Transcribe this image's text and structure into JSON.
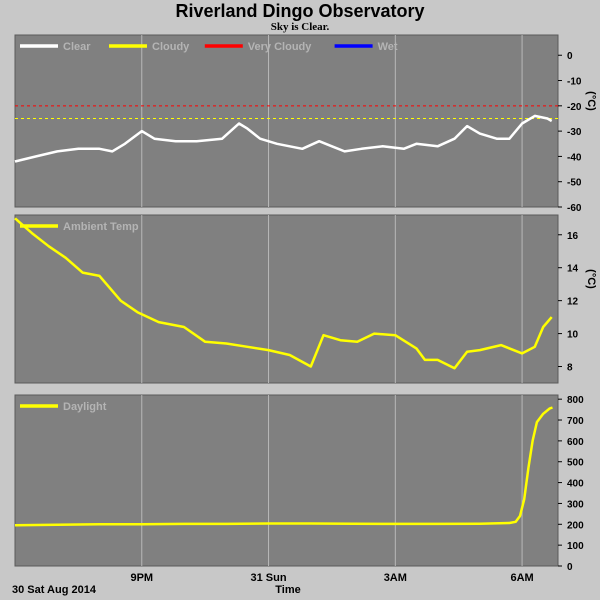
{
  "title": "Riverland Dingo Observatory",
  "subtitle": "Sky is Clear.",
  "xaxis": {
    "label": "Time",
    "date_label": "30 Sat Aug 2014",
    "ticks": [
      {
        "t": 3.0,
        "label": "9PM"
      },
      {
        "t": 6.0,
        "label": "31 Sun"
      },
      {
        "t": 9.0,
        "label": "3AM"
      },
      {
        "t": 12.0,
        "label": "6AM"
      }
    ],
    "range_hours": [
      0,
      12.85
    ],
    "tick_note": "t = hours since 6PM 30 Aug 2014"
  },
  "colors": {
    "panel_bg": "#808080",
    "frame": "#c8c8c8",
    "grid": "#b8b8b8",
    "clear": "#ffffff",
    "cloudy": "#ffff00",
    "very_cloudy": "#ff0000",
    "wet": "#0000ff"
  },
  "chart_data": [
    {
      "type": "line",
      "panel": "cloud",
      "unit": "(°C)",
      "ylim": [
        -60,
        8
      ],
      "yticks": [
        0,
        -10,
        -20,
        -30,
        -40,
        -50,
        -60
      ],
      "legend": [
        {
          "name": "Clear",
          "color": "#ffffff"
        },
        {
          "name": "Cloudy",
          "color": "#ffff00"
        },
        {
          "name": "Very Cloudy",
          "color": "#ff0000"
        },
        {
          "name": "Wet",
          "color": "#0000ff"
        }
      ],
      "thresholds": [
        {
          "name": "Very Cloudy",
          "value": -20,
          "color": "#ff0000"
        },
        {
          "name": "Cloudy",
          "value": -25,
          "color": "#ffff00"
        }
      ],
      "series": [
        {
          "name": "Clear",
          "color": "#ffffff",
          "x": [
            0,
            0.5,
            1.0,
            1.5,
            2.0,
            2.3,
            2.6,
            3.0,
            3.3,
            3.8,
            4.3,
            4.9,
            5.3,
            5.5,
            5.8,
            6.2,
            6.8,
            7.2,
            7.5,
            7.8,
            8.2,
            8.7,
            9.2,
            9.5,
            10.0,
            10.4,
            10.7,
            11.0,
            11.4,
            11.7,
            12.0,
            12.3,
            12.6,
            12.7
          ],
          "values": [
            -42,
            -40,
            -38,
            -37,
            -37,
            -38,
            -35,
            -30,
            -33,
            -34,
            -34,
            -33,
            -27,
            -29,
            -33,
            -35,
            -37,
            -34,
            -36,
            -38,
            -37,
            -36,
            -37,
            -35,
            -36,
            -33,
            -28,
            -31,
            -33,
            -33,
            -27,
            -24,
            -25,
            -26
          ]
        }
      ]
    },
    {
      "type": "line",
      "panel": "temperature",
      "unit": "(°C)",
      "ylim": [
        7,
        17.2
      ],
      "yticks": [
        16,
        14,
        12,
        10,
        8
      ],
      "legend": [
        {
          "name": "Ambient Temp",
          "color": "#ffff00"
        }
      ],
      "series": [
        {
          "name": "Ambient Temp",
          "color": "#ffff00",
          "x": [
            0,
            0.4,
            0.8,
            1.2,
            1.6,
            2.0,
            2.5,
            2.9,
            3.4,
            4.0,
            4.5,
            5.0,
            5.5,
            6.0,
            6.5,
            7.0,
            7.3,
            7.7,
            8.1,
            8.5,
            9.0,
            9.5,
            9.7,
            10.0,
            10.4,
            10.7,
            11.0,
            11.5,
            12.0,
            12.3,
            12.5,
            12.7
          ],
          "values": [
            17.0,
            16.1,
            15.3,
            14.6,
            13.7,
            13.5,
            12.0,
            11.3,
            10.7,
            10.4,
            9.5,
            9.4,
            9.2,
            9.0,
            8.7,
            8.0,
            9.9,
            9.6,
            9.5,
            10.0,
            9.9,
            9.1,
            8.4,
            8.4,
            7.9,
            8.9,
            9.0,
            9.3,
            8.8,
            9.2,
            10.4,
            11.0
          ]
        }
      ]
    },
    {
      "type": "line",
      "panel": "daylight",
      "unit": "",
      "ylim": [
        0,
        820
      ],
      "yticks": [
        800,
        700,
        600,
        500,
        400,
        300,
        200,
        100,
        0
      ],
      "legend": [
        {
          "name": "Daylight",
          "color": "#ffff00"
        }
      ],
      "series": [
        {
          "name": "Daylight",
          "color": "#ffff00",
          "x": [
            0,
            1,
            2,
            3,
            4,
            5,
            6,
            7,
            8,
            9,
            10,
            11,
            11.7,
            11.85,
            11.95,
            12.05,
            12.15,
            12.25,
            12.35,
            12.5,
            12.65,
            12.72
          ],
          "values": [
            195,
            198,
            200,
            200,
            202,
            202,
            204,
            204,
            203,
            202,
            202,
            203,
            206,
            212,
            240,
            320,
            470,
            600,
            690,
            730,
            755,
            760
          ]
        }
      ]
    }
  ]
}
